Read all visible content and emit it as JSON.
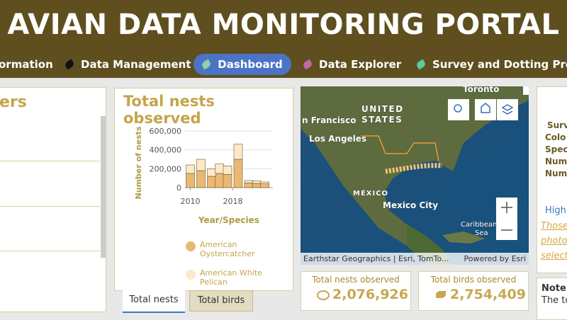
{
  "header": {
    "title": "AVIAN DATA MONITORING PORTAL"
  },
  "nav": [
    "ormation",
    "Data Management",
    "Dashboard",
    "Data Explorer",
    "Survey and Dotting Protoc"
  ],
  "left_panel": {
    "title": "ers"
  },
  "chart_data": {
    "type": "bar",
    "title": "Total nests observed",
    "x_label": "Year/Species",
    "y_label": "Number of nests",
    "x": [
      2010,
      2012,
      2014,
      2015.5,
      2017,
      2019,
      2021,
      2022.5,
      2024
    ],
    "xlim": [
      2009,
      2025.5
    ],
    "xticks": [
      2010,
      2018
    ],
    "ylim": [
      0,
      600000
    ],
    "yticks": [
      0,
      {
        "value": 200000,
        "label": "200,000"
      },
      {
        "value": 400000,
        "label": "400,000"
      },
      {
        "value": 600000,
        "label": "600,000"
      }
    ],
    "grid": true,
    "stacked": true,
    "legend": "bottom",
    "series": [
      {
        "name": "American Oystercatcher",
        "color": "#ebb873",
        "values": [
          150000,
          180000,
          120000,
          150000,
          140000,
          300000,
          50000,
          45000,
          40000
        ]
      },
      {
        "name": "American White Pelican",
        "color": "#fde9c9",
        "values": [
          90000,
          120000,
          80000,
          100000,
          90000,
          160000,
          25000,
          25000,
          20000
        ]
      }
    ]
  },
  "tabs": [
    "Total nests",
    "Total birds"
  ],
  "map": {
    "labels": [
      "Toronto",
      "n Francisco",
      "UNITED",
      "STATES",
      "Los Angeles",
      "MÉXICO",
      "Mexico City",
      "Caribbean",
      "Sea"
    ],
    "attribution": "Earthstar Geographics | Esri, TomTo...",
    "powered": "Powered by Esri"
  },
  "stats": [
    {
      "label": "Total nests observed",
      "value": "2,076,926"
    },
    {
      "label": "Total birds observed",
      "value": "2,754,409"
    }
  ],
  "right_panel": {
    "lines": [
      "Surv",
      "Colo",
      "Spec",
      "Num",
      "Num"
    ],
    "link_title": "High",
    "links": [
      "Those",
      "photo",
      "select"
    ],
    "note_title": "Note:",
    "note": "The to"
  }
}
